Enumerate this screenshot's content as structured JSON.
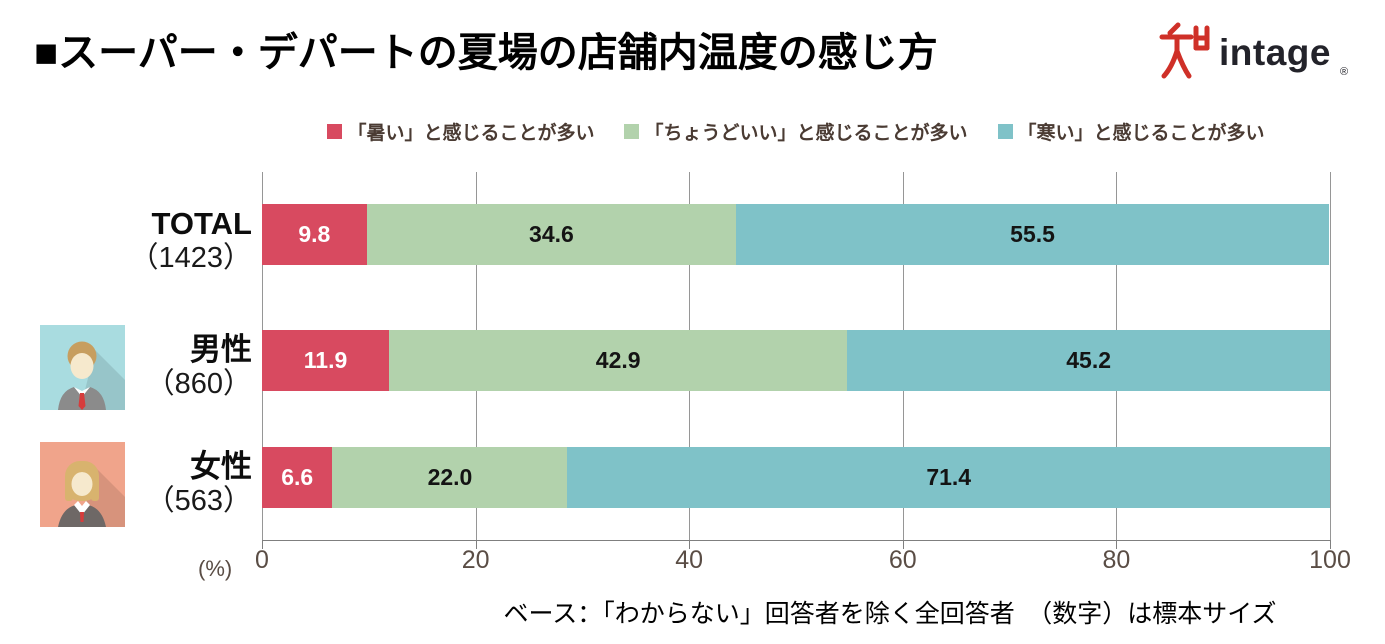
{
  "header": {
    "title": "■スーパー・デパートの夏場の店舗内温度の感じ方",
    "logo": {
      "brand": "intage",
      "registered": "®",
      "mark_icon": "intage-brand-mark-icon",
      "mark_color": "#cf3028",
      "text_color": "#23232a"
    }
  },
  "chart_data": {
    "type": "bar",
    "stacked": true,
    "orientation": "horizontal",
    "categories": [
      "TOTAL",
      "男性",
      "女性"
    ],
    "sample_sizes": [
      "（1423）",
      "（860）",
      "（563）"
    ],
    "row_meta": [
      {
        "avatar": null,
        "avatar_bg": null
      },
      {
        "avatar": "male-avatar-icon",
        "avatar_bg": "#a9dce0"
      },
      {
        "avatar": "female-avatar-icon",
        "avatar_bg": "#f0a48b"
      }
    ],
    "series": [
      {
        "name": "「暑い」と感じることが多い",
        "color": "#d84a60",
        "value_text_color": "#ffffff",
        "values": [
          9.8,
          11.9,
          6.6
        ]
      },
      {
        "name": "「ちょうどいい」と感じることが多い",
        "color": "#b2d2ac",
        "value_text_color": "#141414",
        "values": [
          34.6,
          42.9,
          22.0
        ]
      },
      {
        "name": "「寒い」と感じることが多い",
        "color": "#7fc2c8",
        "value_text_color": "#141414",
        "values": [
          55.5,
          45.2,
          71.4
        ]
      }
    ],
    "xlim": [
      0,
      100
    ],
    "xticks": [
      0,
      20,
      40,
      60,
      80,
      100
    ],
    "xlabel": "(%)",
    "grid": true,
    "legend_position": "top",
    "value_decimals": 1
  },
  "footer": {
    "note": "ベース：「わからない」回答者を除く全回答者　（数字）は標本サイズ"
  }
}
